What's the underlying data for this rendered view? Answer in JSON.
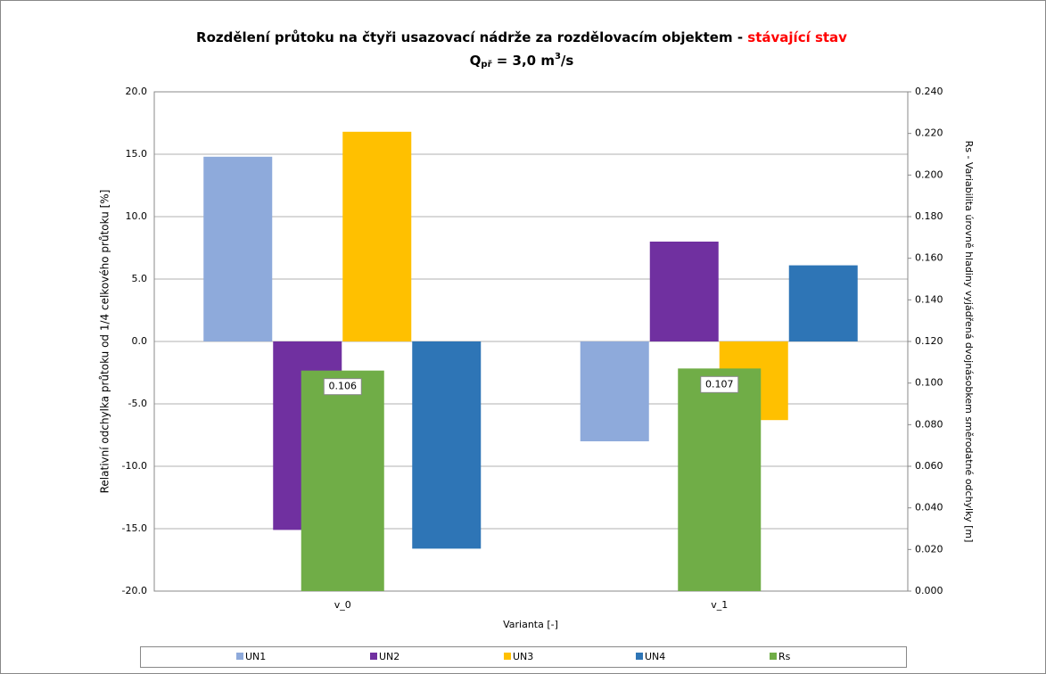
{
  "chart_data": {
    "type": "bar",
    "title": "Rozdělení průtoku na čtyři usazovací nádrže za rozdělovacím objektem - ",
    "title_highlight": "stávající stav",
    "subtitle_parts": [
      "Q",
      "př",
      " = 3,0 m",
      "3",
      "/s"
    ],
    "y_label": "Relativní odchylka průtoku od 1/4 celkového průtoku [%]",
    "y2_label": "Rs - Variabilita úrovně hladiny vyjádřená dvojnásobkem směrodatné odchylky [m]",
    "x_label": "Varianta [-]",
    "categories": [
      "v_0",
      "v_1"
    ],
    "series": [
      {
        "name": "UN1",
        "color": "#8eaadb",
        "values": [
          14.8,
          -8.0
        ]
      },
      {
        "name": "UN2",
        "color": "#7030a0",
        "values": [
          -15.1,
          8.0
        ]
      },
      {
        "name": "UN3",
        "color": "#ffc000",
        "values": [
          16.8,
          -6.3
        ]
      },
      {
        "name": "UN4",
        "color": "#2e75b6",
        "values": [
          -16.6,
          6.1
        ]
      },
      {
        "name": "Rs",
        "color": "#70ad47",
        "values": [
          0.106,
          0.107
        ],
        "axis": "y2"
      }
    ],
    "ylim": [
      -20,
      20
    ],
    "yticks": [
      {
        "value": -20,
        "label": "-20.0"
      },
      {
        "value": -15,
        "label": "-15.0"
      },
      {
        "value": -10,
        "label": "-10.0"
      },
      {
        "value": -5,
        "label": "-5.0"
      },
      {
        "value": 0,
        "label": "0.0"
      },
      {
        "value": 5,
        "label": "5.0"
      },
      {
        "value": 10,
        "label": "10.0"
      },
      {
        "value": 15,
        "label": "15.0"
      },
      {
        "value": 20,
        "label": "20.0"
      }
    ],
    "y2lim": [
      0,
      0.24
    ],
    "y2ticks": [
      {
        "value": 0,
        "label": "0.000"
      },
      {
        "value": 0.02,
        "label": "0.020"
      },
      {
        "value": 0.04,
        "label": "0.040"
      },
      {
        "value": 0.06,
        "label": "0.060"
      },
      {
        "value": 0.08,
        "label": "0.080"
      },
      {
        "value": 0.1,
        "label": "0.100"
      },
      {
        "value": 0.12,
        "label": "0.120"
      },
      {
        "value": 0.14,
        "label": "0.140"
      },
      {
        "value": 0.16,
        "label": "0.160"
      },
      {
        "value": 0.18,
        "label": "0.180"
      },
      {
        "value": 0.2,
        "label": "0.200"
      },
      {
        "value": 0.22,
        "label": "0.220"
      },
      {
        "value": 0.24,
        "label": "0.240"
      }
    ],
    "grid": true,
    "legend": "bottom",
    "title_highlight_color": "#ff0000"
  }
}
